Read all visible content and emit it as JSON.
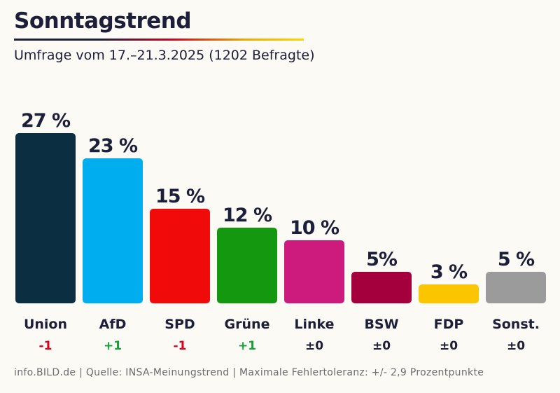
{
  "header": {
    "title": "Sonntagstrend",
    "subtitle": "Umfrage vom 17.–21.3.2025 (1202 Befragte)"
  },
  "footer": {
    "source": "info.BILD.de | Quelle: INSA-Meinungstrend | Maximale Fehlertoleranz: +/- 2,9 Prozentpunkte"
  },
  "chart_data": {
    "type": "bar",
    "title": "Sonntagstrend",
    "subtitle": "Umfrage vom 17.–21.3.2025 (1202 Befragte)",
    "ylim": [
      0,
      27
    ],
    "grid": false,
    "legend": "none",
    "categories": [
      "Union",
      "AfD",
      "SPD",
      "Grüne",
      "Linke",
      "BSW",
      "FDP",
      "Sonst."
    ],
    "values": [
      27,
      23,
      15,
      12,
      10,
      5,
      3,
      5
    ],
    "value_labels": [
      "27 %",
      "23 %",
      "15 %",
      "12 %",
      "10 %",
      "5%",
      "3 %",
      "5 %"
    ],
    "changes": [
      "-1",
      "+1",
      "-1",
      "+1",
      "±0",
      "±0",
      "±0",
      "±0"
    ],
    "change_colors": {
      "negative": "#d9001b",
      "positive": "#16a03a",
      "neutral": "#1d1f3a"
    },
    "colors": [
      "#0b2e40",
      "#00adef",
      "#f10a0a",
      "#14980f",
      "#cc1a7d",
      "#a3003d",
      "#fbc600",
      "#9b9b9b"
    ]
  }
}
